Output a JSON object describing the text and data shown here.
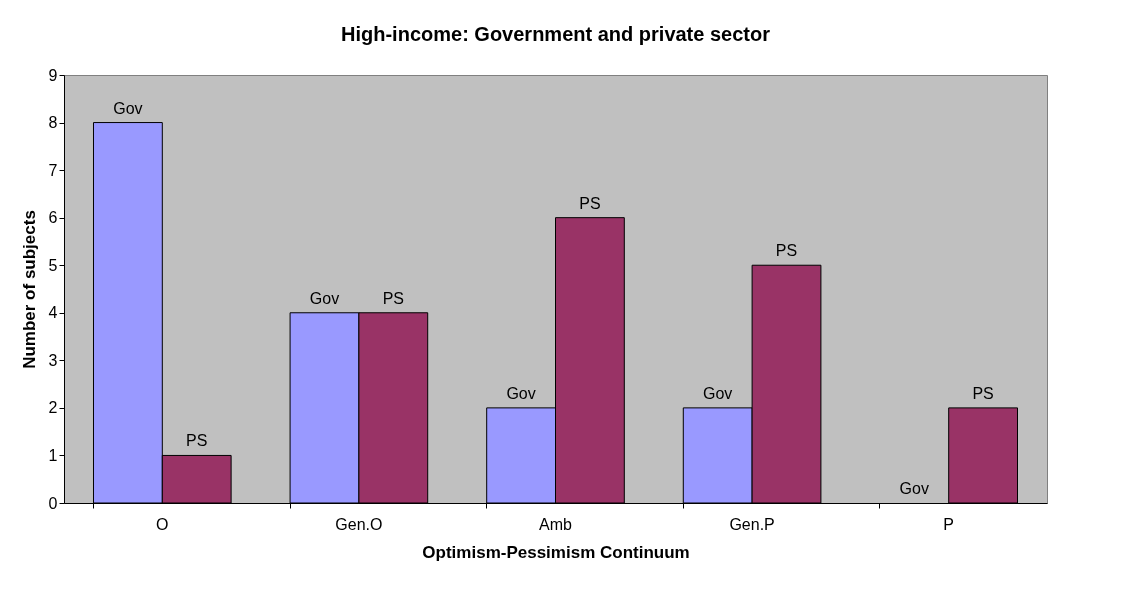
{
  "chart_data": {
    "type": "bar",
    "title": "High-income: Government and private sector",
    "xlabel": "Optimism-Pessimism Continuum",
    "ylabel": "Number of subjects",
    "categories": [
      "O",
      "Gen.O",
      "Amb",
      "Gen.P",
      "P"
    ],
    "series": [
      {
        "name": "Gov",
        "color": "#9999ff",
        "values": [
          8,
          4,
          2,
          2,
          0
        ]
      },
      {
        "name": "PS",
        "color": "#993366",
        "values": [
          1,
          4,
          6,
          5,
          2
        ]
      }
    ],
    "ylim": [
      0,
      9
    ],
    "yticks": [
      0,
      1,
      2,
      3,
      4,
      5,
      6,
      7,
      8,
      9
    ],
    "grid": false,
    "legend": false
  }
}
